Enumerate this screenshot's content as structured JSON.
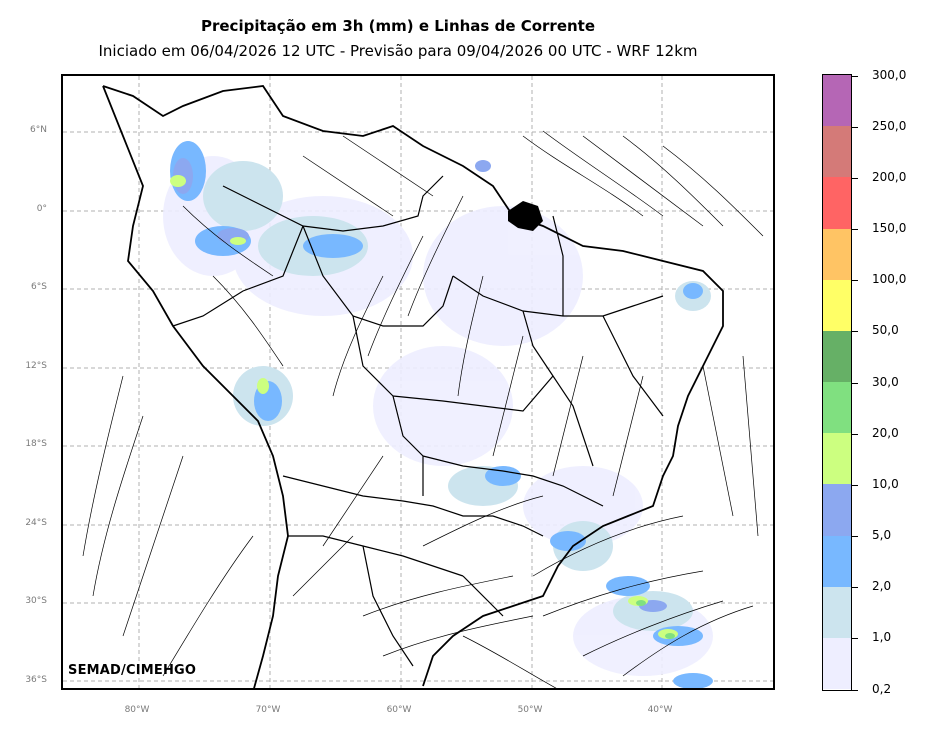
{
  "title": {
    "main": "Precipitação em 3h (mm) e Linhas de Corrente",
    "subtitle": "Iniciado em 06/04/2026 12 UTC - Previsão para 09/04/2026 00 UTC - WRF 12km"
  },
  "watermark": "SEMAD/CIMEHGO",
  "axes": {
    "lat_labels": [
      "6°N",
      "0°",
      "6°S",
      "12°S",
      "18°S",
      "24°S",
      "30°S",
      "36°S"
    ],
    "lon_labels": [
      "80°W",
      "70°W",
      "60°W",
      "50°W",
      "40°W"
    ]
  },
  "colorbar": {
    "labels": [
      "300,0",
      "250,0",
      "200,0",
      "150,0",
      "100,0",
      "50,0",
      "30,0",
      "20,0",
      "10,0",
      "5,0",
      "2,0",
      "1,0",
      "0,2"
    ],
    "colors": [
      "#b566b5",
      "#d47a78",
      "#ff6464",
      "#ffc464",
      "#ffff66",
      "#66b066",
      "#80e080",
      "#ccff80",
      "#8ca8f0",
      "#78b8ff",
      "#cce4ee",
      "#eeeeff"
    ]
  }
}
